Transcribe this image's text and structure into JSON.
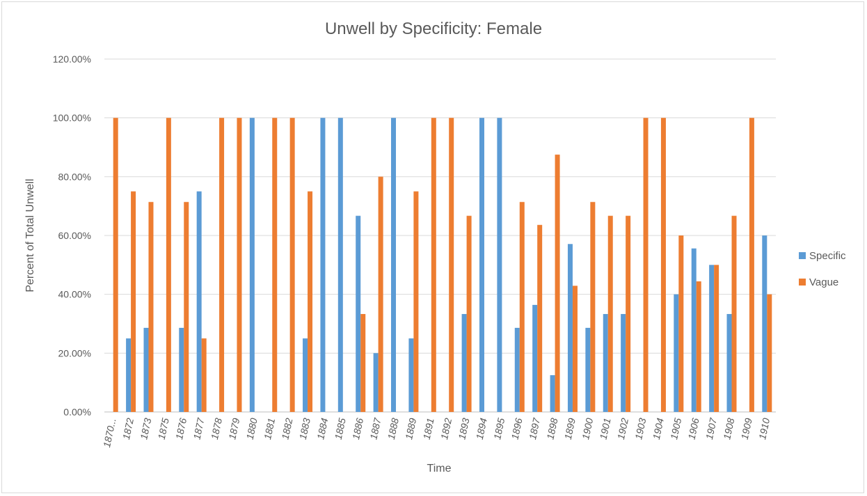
{
  "chart_data": {
    "type": "bar",
    "title": "Unwell by Specificity: Female",
    "xlabel": "Time",
    "ylabel": "Percent of Total Unwell",
    "ylim": [
      0,
      120
    ],
    "yticks": [
      "0.00%",
      "20.00%",
      "40.00%",
      "60.00%",
      "80.00%",
      "100.00%",
      "120.00%"
    ],
    "grid": true,
    "legend_position": "right",
    "categories": [
      "1870...",
      "1872",
      "1873",
      "1875",
      "1876",
      "1877",
      "1878",
      "1879",
      "1880",
      "1881",
      "1882",
      "1883",
      "1884",
      "1885",
      "1886",
      "1887",
      "1888",
      "1889",
      "1891",
      "1892",
      "1893",
      "1894",
      "1895",
      "1896",
      "1897",
      "1898",
      "1899",
      "1900",
      "1901",
      "1902",
      "1903",
      "1904",
      "1905",
      "1906",
      "1907",
      "1908",
      "1909",
      "1910"
    ],
    "series": [
      {
        "name": "Specific",
        "color": "#5b9bd5",
        "values": [
          0,
          25,
          28.6,
          0,
          28.6,
          75,
          0,
          0,
          100,
          0,
          0,
          25,
          100,
          100,
          66.7,
          20,
          100,
          25,
          0,
          0,
          33.3,
          100,
          100,
          28.6,
          36.4,
          12.5,
          57.1,
          28.6,
          33.3,
          33.3,
          0,
          0,
          40,
          55.6,
          50,
          33.3,
          0,
          60
        ]
      },
      {
        "name": "Vague",
        "color": "#ed7d31",
        "values": [
          100,
          75,
          71.4,
          100,
          71.4,
          25,
          100,
          100,
          0,
          100,
          100,
          75,
          0,
          0,
          33.3,
          80,
          0,
          75,
          100,
          100,
          66.7,
          0,
          0,
          71.4,
          63.6,
          87.5,
          42.9,
          71.4,
          66.7,
          66.7,
          100,
          100,
          60,
          44.4,
          50,
          66.7,
          100,
          40
        ]
      }
    ]
  }
}
